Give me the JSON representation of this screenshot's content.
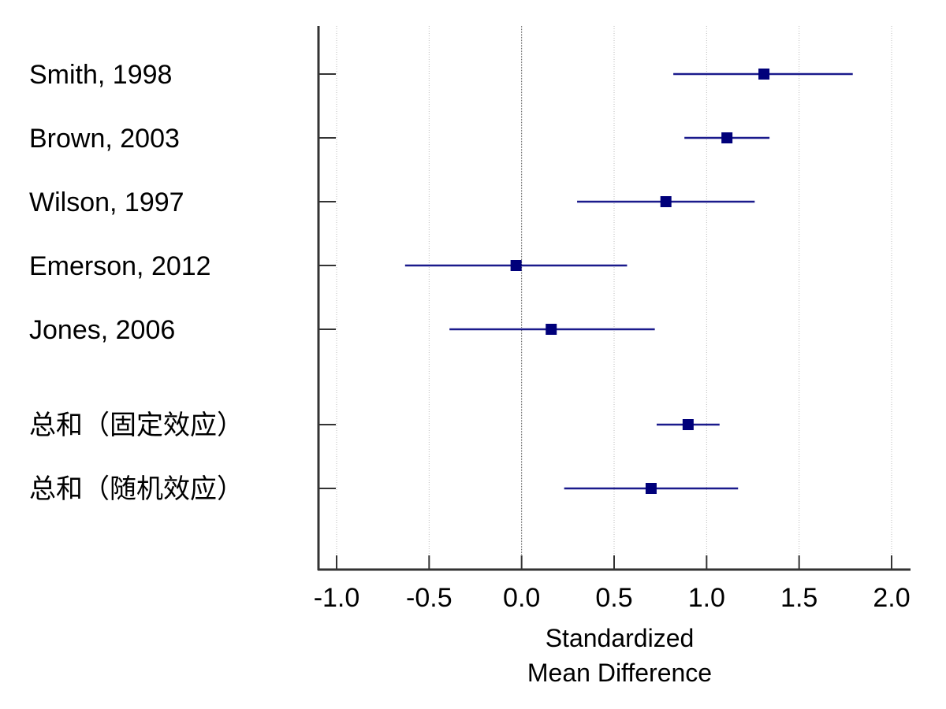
{
  "chart_data": {
    "type": "forest",
    "xlabel_lines": [
      "Standardized",
      "Mean Difference"
    ],
    "xlim": [
      -1.1,
      2.1
    ],
    "xticks": [
      -1.0,
      -0.5,
      0.0,
      0.5,
      1.0,
      1.5,
      2.0
    ],
    "xtick_labels": [
      "-1.0",
      "-0.5",
      "0.0",
      "0.5",
      "1.0",
      "1.5",
      "2.0"
    ],
    "grid": true,
    "reference_line": 0.0,
    "colors": {
      "ci": "#1a1a8c",
      "marker": "#00007a",
      "axis": "#333333",
      "grid": "#bbbbbb"
    },
    "studies": [
      {
        "label": "Smith, 1998",
        "estimate": 1.31,
        "lower": 0.82,
        "upper": 1.79
      },
      {
        "label": "Brown, 2003",
        "estimate": 1.11,
        "lower": 0.88,
        "upper": 1.34
      },
      {
        "label": "Wilson, 1997",
        "estimate": 0.78,
        "lower": 0.3,
        "upper": 1.26
      },
      {
        "label": "Emerson, 2012",
        "estimate": -0.03,
        "lower": -0.63,
        "upper": 0.57
      },
      {
        "label": "Jones, 2006",
        "estimate": 0.16,
        "lower": -0.39,
        "upper": 0.72
      }
    ],
    "pooled": [
      {
        "label": "总和（固定效应）",
        "estimate": 0.9,
        "lower": 0.73,
        "upper": 1.07
      },
      {
        "label": "总和（随机效应）",
        "estimate": 0.7,
        "lower": 0.23,
        "upper": 1.17
      }
    ]
  }
}
